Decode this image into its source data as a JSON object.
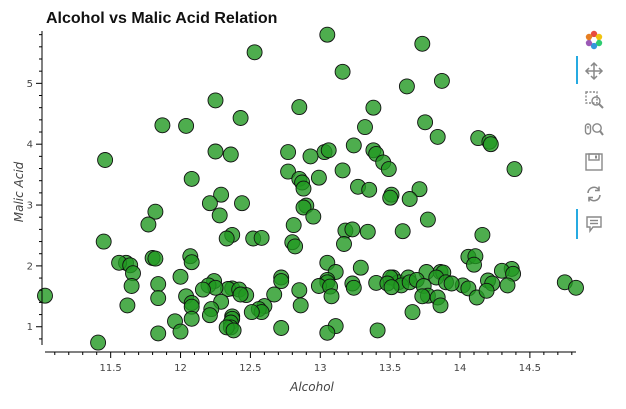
{
  "chart_data": {
    "type": "scatter",
    "title": "Alcohol vs Malic Acid Relation",
    "xlabel": "Alcohol",
    "ylabel": "Malic Acid",
    "xlim": [
      11.03,
      14.83
    ],
    "ylim": [
      0.7,
      5.86
    ],
    "xticks": [
      11.5,
      12,
      12.5,
      13,
      13.5,
      14,
      14.5
    ],
    "yticks": [
      1,
      2,
      3,
      4,
      5
    ],
    "xtick_labels": [
      "11.5",
      "12",
      "12.5",
      "13",
      "13.5",
      "14",
      "14.5"
    ],
    "ytick_labels": [
      "1",
      "2",
      "3",
      "4",
      "5"
    ],
    "marker": {
      "fill": "#229922",
      "fill_opacity": 0.8,
      "edge": "#111111"
    },
    "points": [
      [
        13.05,
        5.8
      ],
      [
        12.53,
        5.51
      ],
      [
        13.73,
        5.65
      ],
      [
        13.16,
        5.19
      ],
      [
        13.87,
        5.04
      ],
      [
        13.62,
        4.95
      ],
      [
        12.25,
        4.72
      ],
      [
        12.85,
        4.61
      ],
      [
        13.38,
        4.6
      ],
      [
        12.43,
        4.43
      ],
      [
        11.87,
        4.31
      ],
      [
        12.04,
        4.3
      ],
      [
        13.32,
        4.28
      ],
      [
        13.75,
        4.36
      ],
      [
        13.84,
        4.12
      ],
      [
        14.13,
        4.1
      ],
      [
        14.21,
        4.04
      ],
      [
        14.22,
        4.0
      ],
      [
        13.24,
        3.98
      ],
      [
        13.03,
        3.87
      ],
      [
        13.06,
        3.9
      ],
      [
        12.25,
        3.88
      ],
      [
        12.36,
        3.83
      ],
      [
        12.77,
        3.87
      ],
      [
        12.93,
        3.8
      ],
      [
        11.46,
        3.74
      ],
      [
        13.38,
        3.9
      ],
      [
        13.4,
        3.84
      ],
      [
        13.45,
        3.7
      ],
      [
        13.49,
        3.59
      ],
      [
        14.39,
        3.59
      ],
      [
        13.16,
        3.57
      ],
      [
        12.77,
        3.55
      ],
      [
        12.85,
        3.43
      ],
      [
        12.99,
        3.45
      ],
      [
        12.08,
        3.43
      ],
      [
        12.87,
        3.37
      ],
      [
        12.88,
        3.27
      ],
      [
        13.27,
        3.3
      ],
      [
        13.35,
        3.25
      ],
      [
        13.71,
        3.26
      ],
      [
        13.51,
        3.17
      ],
      [
        13.5,
        3.12
      ],
      [
        12.29,
        3.17
      ],
      [
        13.64,
        3.1
      ],
      [
        12.21,
        3.03
      ],
      [
        12.44,
        3.03
      ],
      [
        12.9,
        2.99
      ],
      [
        12.88,
        2.96
      ],
      [
        12.95,
        2.81
      ],
      [
        12.28,
        2.83
      ],
      [
        13.77,
        2.76
      ],
      [
        11.82,
        2.89
      ],
      [
        11.77,
        2.68
      ],
      [
        12.81,
        2.67
      ],
      [
        13.18,
        2.58
      ],
      [
        13.23,
        2.6
      ],
      [
        13.34,
        2.56
      ],
      [
        13.59,
        2.57
      ],
      [
        12.37,
        2.51
      ],
      [
        12.52,
        2.45
      ],
      [
        12.58,
        2.46
      ],
      [
        12.33,
        2.45
      ],
      [
        12.8,
        2.39
      ],
      [
        14.16,
        2.51
      ],
      [
        11.45,
        2.4
      ],
      [
        12.82,
        2.32
      ],
      [
        13.17,
        2.36
      ],
      [
        14.06,
        2.15
      ],
      [
        14.11,
        2.16
      ],
      [
        12.07,
        2.16
      ],
      [
        11.8,
        2.13
      ],
      [
        11.82,
        2.12
      ],
      [
        12.08,
        2.06
      ],
      [
        11.61,
        2.05
      ],
      [
        11.56,
        2.05
      ],
      [
        11.64,
        2.01
      ],
      [
        14.1,
        2.02
      ],
      [
        13.05,
        2.05
      ],
      [
        14.37,
        1.95
      ],
      [
        13.11,
        1.9
      ],
      [
        13.29,
        1.97
      ],
      [
        14.3,
        1.92
      ],
      [
        13.86,
        1.9
      ],
      [
        13.88,
        1.89
      ],
      [
        13.76,
        1.9
      ],
      [
        14.38,
        1.87
      ],
      [
        11.66,
        1.88
      ],
      [
        12.0,
        1.82
      ],
      [
        12.72,
        1.81
      ],
      [
        13.52,
        1.81
      ],
      [
        13.56,
        1.73
      ],
      [
        13.5,
        1.81
      ],
      [
        13.63,
        1.81
      ],
      [
        13.83,
        1.81
      ],
      [
        12.72,
        1.75
      ],
      [
        13.23,
        1.71
      ],
      [
        13.05,
        1.77
      ],
      [
        13.05,
        1.73
      ],
      [
        13.4,
        1.72
      ],
      [
        13.48,
        1.71
      ],
      [
        13.58,
        1.68
      ],
      [
        13.64,
        1.73
      ],
      [
        13.69,
        1.77
      ],
      [
        14.02,
        1.68
      ],
      [
        14.06,
        1.63
      ],
      [
        14.2,
        1.76
      ],
      [
        14.23,
        1.71
      ],
      [
        14.34,
        1.68
      ],
      [
        14.75,
        1.73
      ],
      [
        11.84,
        1.7
      ],
      [
        12.24,
        1.75
      ],
      [
        12.2,
        1.68
      ],
      [
        12.37,
        1.63
      ],
      [
        12.34,
        1.62
      ],
      [
        12.42,
        1.61
      ],
      [
        12.47,
        1.52
      ],
      [
        12.25,
        1.64
      ],
      [
        12.16,
        1.61
      ],
      [
        11.65,
        1.67
      ],
      [
        12.85,
        1.6
      ],
      [
        12.99,
        1.67
      ],
      [
        13.07,
        1.66
      ],
      [
        13.24,
        1.64
      ],
      [
        13.51,
        1.65
      ],
      [
        13.74,
        1.67
      ],
      [
        13.9,
        1.73
      ],
      [
        13.77,
        1.51
      ],
      [
        13.94,
        1.71
      ],
      [
        14.83,
        1.64
      ],
      [
        13.73,
        1.5
      ],
      [
        13.84,
        1.48
      ],
      [
        14.12,
        1.48
      ],
      [
        14.19,
        1.59
      ],
      [
        13.08,
        1.5
      ],
      [
        12.67,
        1.53
      ],
      [
        12.04,
        1.5
      ],
      [
        11.03,
        1.51
      ],
      [
        11.84,
        1.47
      ],
      [
        12.43,
        1.53
      ],
      [
        12.29,
        1.41
      ],
      [
        12.08,
        1.39
      ],
      [
        12.22,
        1.29
      ],
      [
        12.08,
        1.33
      ],
      [
        11.62,
        1.35
      ],
      [
        12.86,
        1.35
      ],
      [
        12.6,
        1.34
      ],
      [
        12.56,
        1.29
      ],
      [
        12.58,
        1.24
      ],
      [
        12.51,
        1.24
      ],
      [
        13.66,
        1.24
      ],
      [
        13.86,
        1.35
      ],
      [
        12.21,
        1.19
      ],
      [
        12.37,
        1.17
      ],
      [
        12.37,
        1.13
      ],
      [
        12.36,
        1.07
      ],
      [
        12.08,
        1.13
      ],
      [
        11.96,
        1.09
      ],
      [
        12.36,
        0.99
      ],
      [
        12.33,
        0.99
      ],
      [
        12.72,
        0.98
      ],
      [
        12.38,
        0.94
      ],
      [
        13.11,
        1.01
      ],
      [
        13.41,
        0.94
      ],
      [
        13.05,
        0.9
      ],
      [
        12.0,
        0.92
      ],
      [
        11.84,
        0.89
      ],
      [
        11.41,
        0.74
      ]
    ]
  },
  "toolbar": {
    "tools": [
      {
        "name": "bokeh-logo-icon",
        "active": false
      },
      {
        "name": "pan-icon",
        "active": true
      },
      {
        "name": "box-zoom-icon",
        "active": false
      },
      {
        "name": "wheel-zoom-icon",
        "active": false
      },
      {
        "name": "save-icon",
        "active": false
      },
      {
        "name": "reset-icon",
        "active": false
      },
      {
        "name": "hover-icon",
        "active": true
      }
    ]
  }
}
